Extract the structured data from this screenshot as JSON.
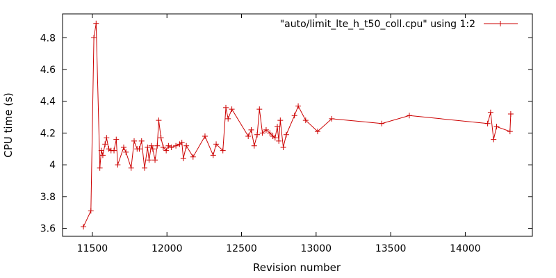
{
  "chart_data": {
    "type": "line",
    "title": "",
    "xlabel": "Revision number",
    "ylabel": "CPU time (s)",
    "xlim": [
      11300,
      14450
    ],
    "ylim": [
      3.55,
      4.95
    ],
    "x_ticks": [
      11500,
      12000,
      12500,
      13000,
      13500,
      14000
    ],
    "y_ticks": [
      3.6,
      3.8,
      4.0,
      4.2,
      4.4,
      4.6,
      4.8
    ],
    "x_tick_labels": [
      "11500",
      "12000",
      "12500",
      "13000",
      "13500",
      "14000"
    ],
    "y_tick_labels": [
      "3.6",
      "3.8",
      "4",
      "4.2",
      "4.4",
      "4.6",
      "4.8"
    ],
    "grid": false,
    "legend_position": "top-right",
    "colors": {
      "series": "#cc0000",
      "axis": "#000000"
    },
    "series": [
      {
        "name": "\"auto/limit_lte_h_t50_coll.cpu\" using 1:2",
        "marker": "plus",
        "points": [
          [
            11440,
            3.61
          ],
          [
            11490,
            3.71
          ],
          [
            11510,
            4.8
          ],
          [
            11525,
            4.89
          ],
          [
            11550,
            3.98
          ],
          [
            11560,
            4.09
          ],
          [
            11570,
            4.06
          ],
          [
            11585,
            4.13
          ],
          [
            11595,
            4.17
          ],
          [
            11610,
            4.1
          ],
          [
            11625,
            4.09
          ],
          [
            11645,
            4.09
          ],
          [
            11660,
            4.16
          ],
          [
            11670,
            4.0
          ],
          [
            11710,
            4.11
          ],
          [
            11725,
            4.08
          ],
          [
            11760,
            3.98
          ],
          [
            11780,
            4.15
          ],
          [
            11800,
            4.1
          ],
          [
            11815,
            4.1
          ],
          [
            11830,
            4.15
          ],
          [
            11850,
            3.98
          ],
          [
            11870,
            4.11
          ],
          [
            11880,
            4.03
          ],
          [
            11895,
            4.12
          ],
          [
            11905,
            4.1
          ],
          [
            11920,
            4.03
          ],
          [
            11935,
            4.12
          ],
          [
            11945,
            4.28
          ],
          [
            11960,
            4.17
          ],
          [
            11975,
            4.11
          ],
          [
            11995,
            4.09
          ],
          [
            12010,
            4.12
          ],
          [
            12030,
            4.11
          ],
          [
            12060,
            4.12
          ],
          [
            12085,
            4.13
          ],
          [
            12100,
            4.14
          ],
          [
            12110,
            4.04
          ],
          [
            12130,
            4.12
          ],
          [
            12175,
            4.05
          ],
          [
            12255,
            4.18
          ],
          [
            12310,
            4.06
          ],
          [
            12330,
            4.13
          ],
          [
            12375,
            4.09
          ],
          [
            12395,
            4.36
          ],
          [
            12410,
            4.29
          ],
          [
            12435,
            4.35
          ],
          [
            12545,
            4.18
          ],
          [
            12565,
            4.22
          ],
          [
            12585,
            4.12
          ],
          [
            12605,
            4.19
          ],
          [
            12620,
            4.35
          ],
          [
            12640,
            4.2
          ],
          [
            12665,
            4.22
          ],
          [
            12690,
            4.2
          ],
          [
            12710,
            4.18
          ],
          [
            12725,
            4.17
          ],
          [
            12740,
            4.24
          ],
          [
            12750,
            4.15
          ],
          [
            12760,
            4.28
          ],
          [
            12780,
            4.11
          ],
          [
            12800,
            4.19
          ],
          [
            12855,
            4.31
          ],
          [
            12880,
            4.37
          ],
          [
            12930,
            4.28
          ],
          [
            13010,
            4.21
          ],
          [
            13105,
            4.29
          ],
          [
            13440,
            4.26
          ],
          [
            13625,
            4.31
          ],
          [
            14150,
            4.26
          ],
          [
            14170,
            4.33
          ],
          [
            14190,
            4.16
          ],
          [
            14210,
            4.24
          ],
          [
            14300,
            4.21
          ],
          [
            14305,
            4.32
          ]
        ]
      }
    ]
  }
}
